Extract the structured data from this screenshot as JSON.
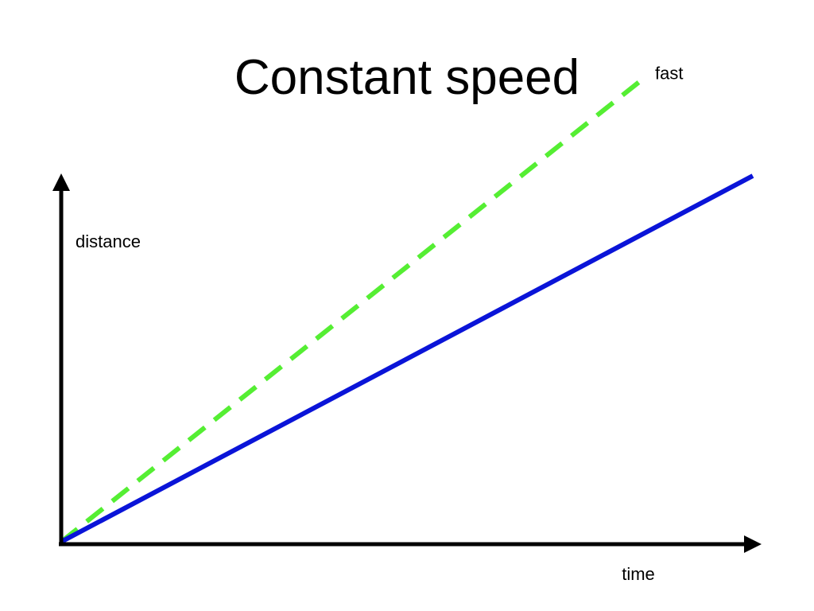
{
  "slide": {
    "title": "Constant speed"
  },
  "chart_data": {
    "type": "line",
    "title": "Constant speed",
    "xlabel": "time",
    "ylabel": "distance",
    "xlim": [
      0,
      1
    ],
    "ylim": [
      0,
      1
    ],
    "grid": false,
    "axis_ticks": false,
    "series": [
      {
        "name": "fast",
        "style": "dashed",
        "color": "#55ee33",
        "x": [
          0,
          0.838
        ],
        "y": [
          0,
          1.26
        ]
      },
      {
        "style": "solid",
        "color": "#0a14d8",
        "x": [
          0,
          1.0
        ],
        "y": [
          0,
          1.0
        ]
      }
    ]
  }
}
